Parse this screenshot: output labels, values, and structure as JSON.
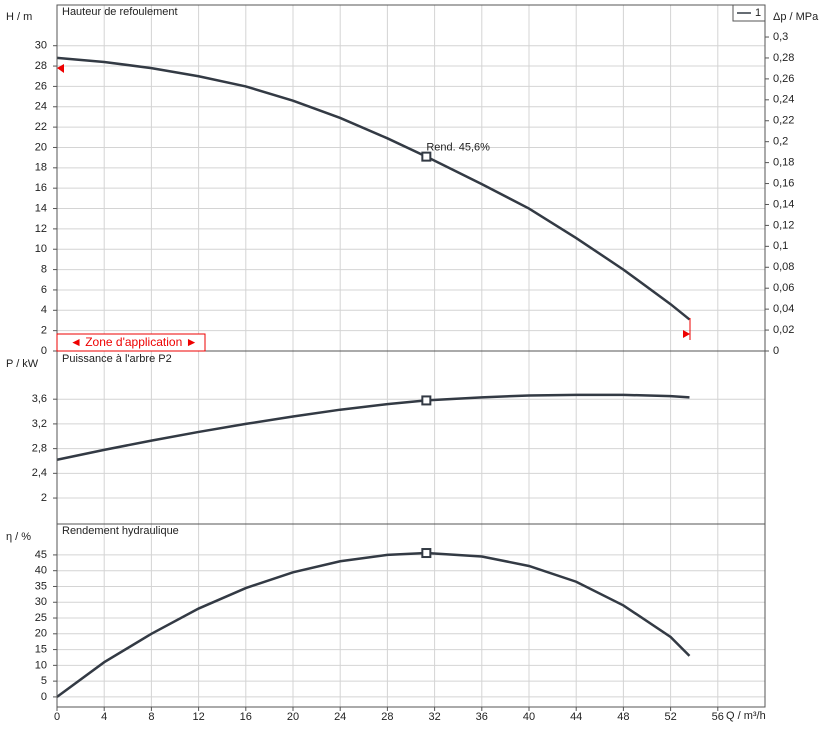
{
  "chart_data": [
    {
      "type": "line",
      "title": "Hauteur de refoulement",
      "ylabel": "H / m",
      "y2label": "Δp / MPa",
      "x": [
        0,
        4,
        8,
        12,
        16,
        20,
        24,
        28,
        31.3,
        36,
        40,
        44,
        48,
        52,
        53.6
      ],
      "series": [
        {
          "name": "1",
          "color": "#333a44",
          "values": [
            28.8,
            28.4,
            27.8,
            27,
            26,
            24.6,
            22.9,
            20.9,
            19.1,
            16.4,
            14,
            11.1,
            8,
            4.6,
            3.1
          ]
        }
      ],
      "operating_point": {
        "x": 31.3,
        "y": 19.1
      },
      "annotation": "Rend.  45,6%",
      "zone_label": "◄ Zone d'application ►",
      "xlim": [
        0,
        60
      ],
      "ylim": [
        0,
        34
      ],
      "yticks": [
        0,
        2,
        4,
        6,
        8,
        10,
        12,
        14,
        16,
        18,
        20,
        22,
        24,
        26,
        28,
        30
      ],
      "y2lim": [
        0,
        0.3306
      ],
      "y2ticks": [
        0,
        {
          "value": 0.02,
          "label": "0,02"
        },
        {
          "value": 0.04,
          "label": "0,04"
        },
        {
          "value": 0.06,
          "label": "0,06"
        },
        {
          "value": 0.08,
          "label": "0,08"
        },
        {
          "value": 0.1,
          "label": "0,1"
        },
        {
          "value": 0.12,
          "label": "0,12"
        },
        {
          "value": 0.14,
          "label": "0,14"
        },
        {
          "value": 0.16,
          "label": "0,16"
        },
        {
          "value": 0.18,
          "label": "0,18"
        },
        {
          "value": 0.2,
          "label": "0,2"
        },
        {
          "value": 0.22,
          "label": "0,22"
        },
        {
          "value": 0.24,
          "label": "0,24"
        },
        {
          "value": 0.26,
          "label": "0,26"
        },
        {
          "value": 0.28,
          "label": "0,28"
        },
        {
          "value": 0.3,
          "label": "0,3"
        }
      ],
      "grid": true,
      "legend": "top-right"
    },
    {
      "type": "line",
      "title": "Puissance à l'arbre P2",
      "ylabel": "P / kW",
      "x": [
        0,
        4,
        8,
        12,
        16,
        20,
        24,
        28,
        31.3,
        36,
        40,
        44,
        48,
        52,
        53.6
      ],
      "series": [
        {
          "name": "1",
          "color": "#333a44",
          "values": [
            2.62,
            2.78,
            2.93,
            3.07,
            3.2,
            3.32,
            3.43,
            3.52,
            3.58,
            3.63,
            3.66,
            3.67,
            3.67,
            3.65,
            3.63
          ]
        }
      ],
      "operating_point": {
        "x": 31.3,
        "y": 3.58
      },
      "xlim": [
        0,
        60
      ],
      "ylim": [
        1.58,
        4.38
      ],
      "yticks": [
        2,
        {
          "value": 2.4,
          "label": "2,4"
        },
        {
          "value": 2.8,
          "label": "2,8"
        },
        {
          "value": 3.2,
          "label": "3,2"
        },
        {
          "value": 3.6,
          "label": "3,6"
        }
      ],
      "grid": true
    },
    {
      "type": "line",
      "title": "Rendement hydraulique",
      "ylabel": "η / %",
      "xlabel": "Q / m³/h",
      "x": [
        0,
        4,
        8,
        12,
        16,
        20,
        24,
        28,
        31.3,
        36,
        40,
        44,
        48,
        52,
        53.6
      ],
      "series": [
        {
          "name": "1",
          "color": "#333a44",
          "values": [
            0,
            11,
            20,
            28,
            34.5,
            39.5,
            43,
            45,
            45.6,
            44.5,
            41.5,
            36.5,
            29,
            19,
            13
          ]
        }
      ],
      "operating_point": {
        "x": 31.3,
        "y": 45.6
      },
      "xlim": [
        0,
        60
      ],
      "ylim": [
        -3.2,
        54.8
      ],
      "yticks": [
        0,
        5,
        10,
        15,
        20,
        25,
        30,
        35,
        40,
        45
      ],
      "xticks": [
        0,
        4,
        8,
        12,
        16,
        20,
        24,
        28,
        32,
        36,
        40,
        44,
        48,
        52,
        56
      ],
      "grid": true
    }
  ]
}
